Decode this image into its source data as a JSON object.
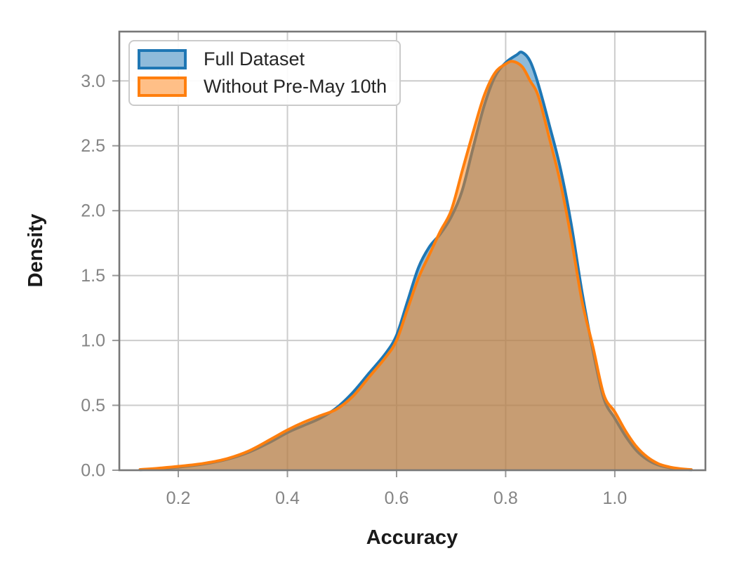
{
  "chart_data": {
    "type": "area",
    "subtype": "kde-density",
    "title": "",
    "xlabel": "Accuracy",
    "ylabel": "Density",
    "xlim": [
      0.092,
      1.166
    ],
    "ylim": [
      0,
      3.38
    ],
    "grid": true,
    "legend_position": "upper left",
    "xticks": [
      {
        "value": 0.2,
        "label": "0.2"
      },
      {
        "value": 0.4,
        "label": "0.4"
      },
      {
        "value": 0.6,
        "label": "0.6"
      },
      {
        "value": 0.8,
        "label": "0.8"
      },
      {
        "value": 1.0,
        "label": "1.0"
      }
    ],
    "yticks": [
      {
        "value": 0.0,
        "label": "0.0"
      },
      {
        "value": 0.5,
        "label": "0.5"
      },
      {
        "value": 1.0,
        "label": "1.0"
      },
      {
        "value": 1.5,
        "label": "1.5"
      },
      {
        "value": 2.0,
        "label": "2.0"
      },
      {
        "value": 2.5,
        "label": "2.5"
      },
      {
        "value": 3.0,
        "label": "3.0"
      }
    ],
    "colors": {
      "grid": "#cccccc",
      "spine": "#787878",
      "tick": "#999999",
      "tick_label": "#848484",
      "axis_label": "#1a1a1a",
      "legend_border": "#cbcbcb"
    },
    "series": [
      {
        "name": "Full Dataset",
        "color": "#1f77b4",
        "fill_opacity": 0.5,
        "stroke_width": 4,
        "peak": {
          "x": 0.83,
          "y": 3.22
        },
        "points": [
          [
            0.13,
            0.004
          ],
          [
            0.17,
            0.013
          ],
          [
            0.21,
            0.028
          ],
          [
            0.25,
            0.05
          ],
          [
            0.29,
            0.085
          ],
          [
            0.33,
            0.14
          ],
          [
            0.37,
            0.22
          ],
          [
            0.4,
            0.29
          ],
          [
            0.43,
            0.345
          ],
          [
            0.46,
            0.4
          ],
          [
            0.49,
            0.48
          ],
          [
            0.52,
            0.6
          ],
          [
            0.55,
            0.75
          ],
          [
            0.58,
            0.9
          ],
          [
            0.6,
            1.04
          ],
          [
            0.62,
            1.3
          ],
          [
            0.64,
            1.56
          ],
          [
            0.66,
            1.72
          ],
          [
            0.68,
            1.82
          ],
          [
            0.7,
            1.95
          ],
          [
            0.72,
            2.15
          ],
          [
            0.74,
            2.48
          ],
          [
            0.76,
            2.8
          ],
          [
            0.78,
            3.03
          ],
          [
            0.8,
            3.14
          ],
          [
            0.82,
            3.2
          ],
          [
            0.83,
            3.22
          ],
          [
            0.845,
            3.15
          ],
          [
            0.86,
            2.97
          ],
          [
            0.88,
            2.66
          ],
          [
            0.9,
            2.33
          ],
          [
            0.92,
            1.9
          ],
          [
            0.94,
            1.37
          ],
          [
            0.96,
            0.92
          ],
          [
            0.98,
            0.55
          ],
          [
            1.0,
            0.4
          ],
          [
            1.02,
            0.26
          ],
          [
            1.04,
            0.15
          ],
          [
            1.06,
            0.08
          ],
          [
            1.08,
            0.04
          ],
          [
            1.1,
            0.02
          ],
          [
            1.12,
            0.01
          ],
          [
            1.14,
            0.003
          ]
        ]
      },
      {
        "name": "Without Pre-May 10th",
        "color": "#ff7f0e",
        "fill_opacity": 0.5,
        "stroke_width": 4,
        "peak": {
          "x": 0.813,
          "y": 3.15
        },
        "points": [
          [
            0.13,
            0.005
          ],
          [
            0.17,
            0.018
          ],
          [
            0.21,
            0.034
          ],
          [
            0.25,
            0.055
          ],
          [
            0.29,
            0.09
          ],
          [
            0.33,
            0.15
          ],
          [
            0.37,
            0.24
          ],
          [
            0.4,
            0.31
          ],
          [
            0.43,
            0.37
          ],
          [
            0.46,
            0.42
          ],
          [
            0.49,
            0.47
          ],
          [
            0.52,
            0.57
          ],
          [
            0.55,
            0.72
          ],
          [
            0.58,
            0.87
          ],
          [
            0.6,
            1.0
          ],
          [
            0.62,
            1.24
          ],
          [
            0.64,
            1.48
          ],
          [
            0.66,
            1.66
          ],
          [
            0.68,
            1.84
          ],
          [
            0.7,
            2.0
          ],
          [
            0.72,
            2.3
          ],
          [
            0.74,
            2.6
          ],
          [
            0.76,
            2.88
          ],
          [
            0.78,
            3.06
          ],
          [
            0.8,
            3.13
          ],
          [
            0.813,
            3.15
          ],
          [
            0.83,
            3.11
          ],
          [
            0.845,
            3.0
          ],
          [
            0.86,
            2.88
          ],
          [
            0.88,
            2.56
          ],
          [
            0.9,
            2.22
          ],
          [
            0.92,
            1.79
          ],
          [
            0.94,
            1.3
          ],
          [
            0.96,
            0.95
          ],
          [
            0.98,
            0.58
          ],
          [
            1.0,
            0.45
          ],
          [
            1.02,
            0.3
          ],
          [
            1.04,
            0.18
          ],
          [
            1.06,
            0.1
          ],
          [
            1.08,
            0.05
          ],
          [
            1.1,
            0.025
          ],
          [
            1.12,
            0.012
          ],
          [
            1.14,
            0.005
          ]
        ]
      }
    ]
  }
}
